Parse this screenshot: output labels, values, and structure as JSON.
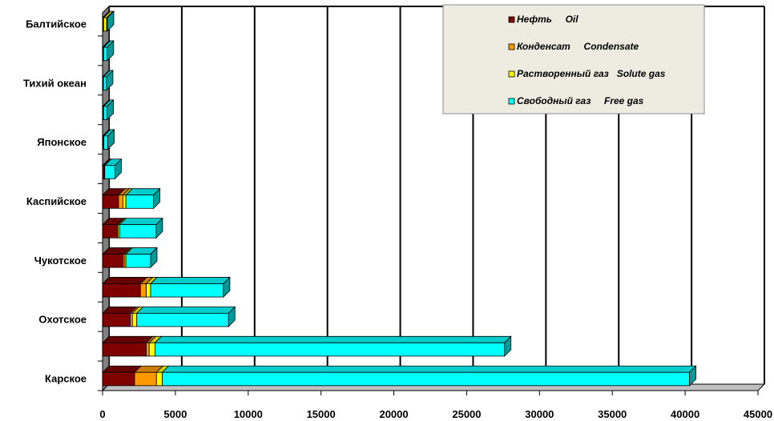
{
  "chart_data": {
    "type": "bar",
    "orientation": "horizontal",
    "stacked": true,
    "three_d": true,
    "categories": [
      "Карское",
      "",
      "Охотское",
      "",
      "Чукотское",
      "",
      "Каспийское",
      "",
      "Японское",
      "",
      "Тихий океан",
      "",
      "Балтийское"
    ],
    "series": [
      {
        "name": "Нефть     Oil",
        "color": "#800000",
        "values": [
          2200,
          3000,
          1900,
          2600,
          1400,
          1000,
          1100,
          100,
          60,
          40,
          30,
          40,
          20
        ]
      },
      {
        "name": "Конденсат     Condensate",
        "color": "#ff9900",
        "values": [
          1500,
          200,
          150,
          400,
          100,
          80,
          300,
          20,
          10,
          10,
          10,
          10,
          60
        ]
      },
      {
        "name": "Растворенный газ   Solute gas",
        "color": "#ffff00",
        "values": [
          400,
          400,
          300,
          300,
          100,
          100,
          200,
          30,
          20,
          20,
          20,
          20,
          200
        ]
      },
      {
        "name": "Свободный газ     Free gas",
        "color": "#00ffff",
        "values": [
          36200,
          24000,
          6300,
          5000,
          1700,
          2500,
          1900,
          700,
          270,
          240,
          210,
          250,
          50
        ]
      }
    ],
    "xlim": [
      0,
      45000
    ],
    "xticks": [
      "0",
      "5000",
      "10000",
      "15000",
      "20000",
      "25000",
      "30000",
      "35000",
      "40000",
      "45000"
    ],
    "grid": true,
    "legend_position": "top-right"
  }
}
